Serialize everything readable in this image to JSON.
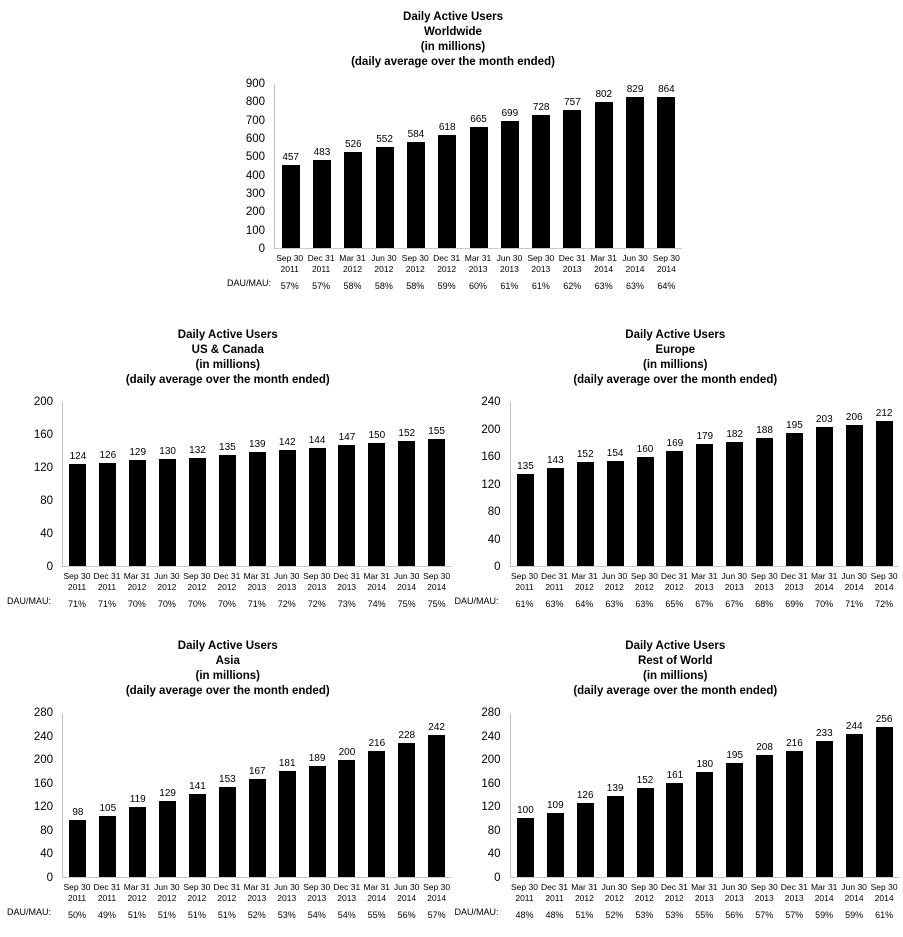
{
  "dau_mau_label": "DAU/MAU:",
  "colors": {
    "bar": "#000000",
    "axis_line": "#bfbfbf",
    "text": "#000000"
  },
  "chart_data": [
    {
      "id": "worldwide",
      "type": "bar",
      "title_lines": [
        "Daily Active Users",
        "Worldwide",
        "(in millions)",
        "(daily average over the month ended)"
      ],
      "categories": [
        "Sep 30 2011",
        "Dec 31 2011",
        "Mar 31 2012",
        "Jun 30 2012",
        "Sep 30 2012",
        "Dec 31 2012",
        "Mar 31 2013",
        "Jun 30 2013",
        "Sep 30 2013",
        "Dec 31 2013",
        "Mar 31 2014",
        "Jun 30 2014",
        "Sep 30 2014"
      ],
      "values": [
        457,
        483,
        526,
        552,
        584,
        618,
        665,
        699,
        728,
        757,
        802,
        829,
        864
      ],
      "dau_mau": [
        "57%",
        "57%",
        "58%",
        "58%",
        "58%",
        "59%",
        "60%",
        "61%",
        "61%",
        "62%",
        "63%",
        "63%",
        "64%"
      ],
      "ylim": [
        0,
        900
      ],
      "ytick_step": 100,
      "grid": false,
      "legend": false
    },
    {
      "id": "us-canada",
      "type": "bar",
      "title_lines": [
        "Daily Active Users",
        "US & Canada",
        "(in millions)",
        "(daily average over the month ended)"
      ],
      "categories": [
        "Sep 30 2011",
        "Dec 31 2011",
        "Mar 31 2012",
        "Jun 30 2012",
        "Sep 30 2012",
        "Dec 31 2012",
        "Mar 31 2013",
        "Jun 30 2013",
        "Sep 30 2013",
        "Dec 31 2013",
        "Mar 31 2014",
        "Jun 30 2014",
        "Sep 30 2014"
      ],
      "values": [
        124,
        126,
        129,
        130,
        132,
        135,
        139,
        142,
        144,
        147,
        150,
        152,
        155
      ],
      "dau_mau": [
        "71%",
        "71%",
        "70%",
        "70%",
        "70%",
        "70%",
        "71%",
        "72%",
        "72%",
        "73%",
        "74%",
        "75%",
        "75%"
      ],
      "ylim": [
        0,
        200
      ],
      "ytick_step": 40,
      "grid": false,
      "legend": false
    },
    {
      "id": "europe",
      "type": "bar",
      "title_lines": [
        "Daily Active Users",
        "Europe",
        "(in millions)",
        "(daily average over the month ended)"
      ],
      "categories": [
        "Sep 30 2011",
        "Dec 31 2011",
        "Mar 31 2012",
        "Jun 30 2012",
        "Sep 30 2012",
        "Dec 31 2012",
        "Mar 31 2013",
        "Jun 30 2013",
        "Sep 30 2013",
        "Dec 31 2013",
        "Mar 31 2014",
        "Jun 30 2014",
        "Sep 30 2014"
      ],
      "values": [
        135,
        143,
        152,
        154,
        160,
        169,
        179,
        182,
        188,
        195,
        203,
        206,
        212
      ],
      "dau_mau": [
        "61%",
        "63%",
        "64%",
        "63%",
        "63%",
        "65%",
        "67%",
        "67%",
        "68%",
        "69%",
        "70%",
        "71%",
        "72%"
      ],
      "ylim": [
        0,
        240
      ],
      "ytick_step": 40,
      "grid": false,
      "legend": false
    },
    {
      "id": "asia",
      "type": "bar",
      "title_lines": [
        "Daily Active Users",
        "Asia",
        "(in millions)",
        "(daily average over the month ended)"
      ],
      "categories": [
        "Sep 30 2011",
        "Dec 31 2011",
        "Mar 31 2012",
        "Jun 30 2012",
        "Sep 30 2012",
        "Dec 31 2012",
        "Mar 31 2013",
        "Jun 30 2013",
        "Sep 30 2013",
        "Dec 31 2013",
        "Mar 31 2014",
        "Jun 30 2014",
        "Sep 30 2014"
      ],
      "values": [
        98,
        105,
        119,
        129,
        141,
        153,
        167,
        181,
        189,
        200,
        216,
        228,
        242
      ],
      "dau_mau": [
        "50%",
        "49%",
        "51%",
        "51%",
        "51%",
        "51%",
        "52%",
        "53%",
        "54%",
        "54%",
        "55%",
        "56%",
        "57%"
      ],
      "ylim": [
        0,
        280
      ],
      "ytick_step": 40,
      "grid": false,
      "legend": false
    },
    {
      "id": "rest-of-world",
      "type": "bar",
      "title_lines": [
        "Daily Active Users",
        "Rest of World",
        "(in millions)",
        "(daily average over the month ended)"
      ],
      "categories": [
        "Sep 30 2011",
        "Dec 31 2011",
        "Mar 31 2012",
        "Jun 30 2012",
        "Sep 30 2012",
        "Dec 31 2012",
        "Mar 31 2013",
        "Jun 30 2013",
        "Sep 30 2013",
        "Dec 31 2013",
        "Mar 31 2014",
        "Jun 30 2014",
        "Sep 30 2014"
      ],
      "values": [
        100,
        109,
        126,
        139,
        152,
        161,
        180,
        195,
        208,
        216,
        233,
        244,
        256
      ],
      "dau_mau": [
        "48%",
        "48%",
        "51%",
        "52%",
        "53%",
        "53%",
        "55%",
        "56%",
        "57%",
        "57%",
        "59%",
        "59%",
        "61%"
      ],
      "ylim": [
        0,
        280
      ],
      "ytick_step": 40,
      "grid": false,
      "legend": false
    }
  ]
}
